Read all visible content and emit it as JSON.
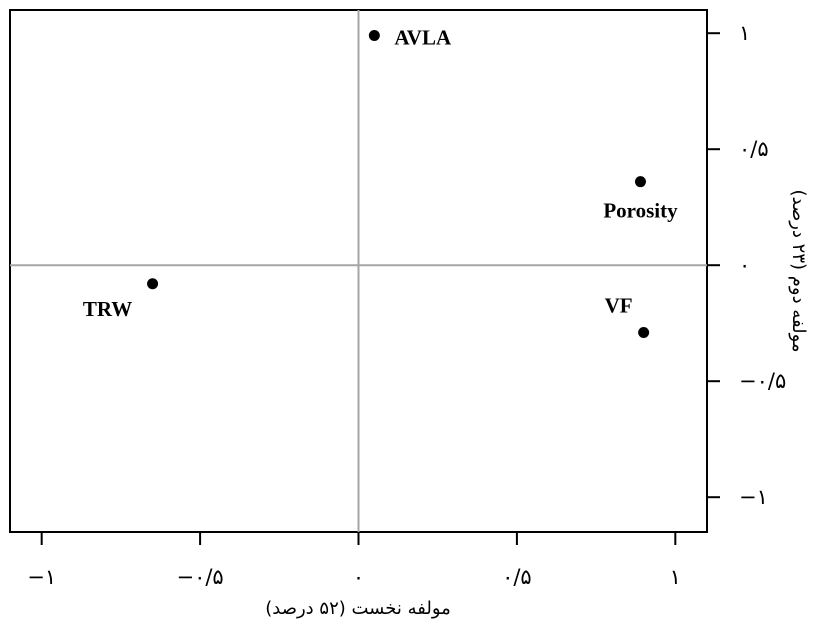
{
  "chart_data": {
    "type": "scatter",
    "title": "",
    "xlabel": "مولفه نخست (۵۲ درصد)",
    "ylabel": "مولفه دوم (۲۳ درصد)",
    "xlim": [
      -1.1,
      1.1
    ],
    "ylim": [
      -1.15,
      1.1
    ],
    "x_ticks": [
      {
        "value": -1,
        "label": "−۱"
      },
      {
        "value": -0.5,
        "label": "−۰/۵"
      },
      {
        "value": 0,
        "label": "۰"
      },
      {
        "value": 0.5,
        "label": "۰/۵"
      },
      {
        "value": 1,
        "label": "۱"
      }
    ],
    "y_ticks": [
      {
        "value": 1,
        "label": "۱"
      },
      {
        "value": 0.5,
        "label": "۰/۵"
      },
      {
        "value": 0,
        "label": "۰"
      },
      {
        "value": -0.5,
        "label": "−۰/۵"
      },
      {
        "value": -1,
        "label": "−۱"
      }
    ],
    "reference_lines": {
      "x": 0,
      "y": 0,
      "color": "#a6a6a6"
    },
    "points": [
      {
        "name": "AVLA",
        "x": 0.05,
        "y": 0.99,
        "label_position": "right"
      },
      {
        "name": "Porosity",
        "x": 0.89,
        "y": 0.36,
        "label_position": "below"
      },
      {
        "name": "TRW",
        "x": -0.65,
        "y": -0.08,
        "label_position": "below-left"
      },
      {
        "name": "VF",
        "x": 0.9,
        "y": -0.29,
        "label_position": "above-left"
      }
    ],
    "grid": false,
    "legend": "none"
  }
}
